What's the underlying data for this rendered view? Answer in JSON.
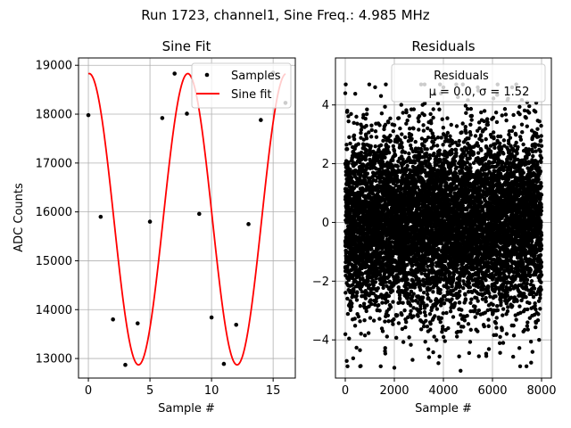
{
  "figure": {
    "suptitle": "Run 1723, channel1, Sine Freq.: 4.985 MHz"
  },
  "chart_data": [
    {
      "type": "line",
      "title": "Sine Fit",
      "xlabel": "Sample #",
      "ylabel": "ADC Counts",
      "xlim": [
        -0.8,
        16.8
      ],
      "ylim": [
        12600,
        19150
      ],
      "xticks": [
        0,
        5,
        10,
        15
      ],
      "yticks": [
        13000,
        14000,
        15000,
        16000,
        17000,
        18000,
        19000
      ],
      "xtick_labels": [
        "0",
        "5",
        "10",
        "15"
      ],
      "ytick_labels": [
        "13000",
        "14000",
        "15000",
        "16000",
        "17000",
        "18000",
        "19000"
      ],
      "grid": true,
      "legend": {
        "placement": "top-right",
        "entries": [
          "Samples",
          "Sine fit"
        ]
      },
      "series": [
        {
          "name": "Samples",
          "style": "markers",
          "color": "#000000",
          "x": [
            0,
            1,
            2,
            3,
            4,
            5,
            6,
            7,
            8,
            9,
            10,
            11,
            12,
            13,
            14,
            15,
            16
          ],
          "y": [
            17980,
            15900,
            13800,
            12870,
            13720,
            15800,
            17920,
            18830,
            18010,
            15960,
            13840,
            12890,
            13690,
            15750,
            17880,
            18850,
            18230
          ]
        },
        {
          "name": "Sine fit",
          "style": "line",
          "color": "#ff0000",
          "model": {
            "offset": 15850,
            "amplitude": 2980,
            "period_samples": 8.0,
            "phase_deg": 86.8,
            "x_start": 0,
            "x_end": 16
          }
        }
      ]
    },
    {
      "type": "scatter",
      "title": "Residuals",
      "xlabel": "Sample #",
      "ylabel": "",
      "xlim": [
        -400,
        8400
      ],
      "ylim": [
        -5.3,
        5.6
      ],
      "xticks": [
        0,
        2000,
        4000,
        6000,
        8000
      ],
      "yticks": [
        -4,
        -2,
        0,
        2,
        4
      ],
      "xtick_labels": [
        "0",
        "2000",
        "4000",
        "6000",
        "8000"
      ],
      "ytick_labels": [
        "−4",
        "−2",
        "0",
        "2",
        "4"
      ],
      "grid": true,
      "legend": {
        "placement": "top-right",
        "entries": [
          "Residuals",
          "μ = 0.0, σ = 1.52"
        ]
      },
      "series": [
        {
          "name": "Residuals",
          "color": "#000000",
          "distribution": {
            "mean": 0.0,
            "sigma": 1.52,
            "count": 8000,
            "x_start": 0,
            "x_end": 8000
          },
          "notable_points": [
            {
              "x": 2000,
              "y": -4.95
            },
            {
              "x": 4700,
              "y": -5.05
            },
            {
              "x": 4000,
              "y": 4.6
            },
            {
              "x": 5400,
              "y": 4.6
            },
            {
              "x": 6800,
              "y": 4.6
            },
            {
              "x": 0,
              "y": 4.4
            },
            {
              "x": 600,
              "y": -4.35
            },
            {
              "x": 7900,
              "y": -4.0
            }
          ]
        }
      ]
    }
  ]
}
